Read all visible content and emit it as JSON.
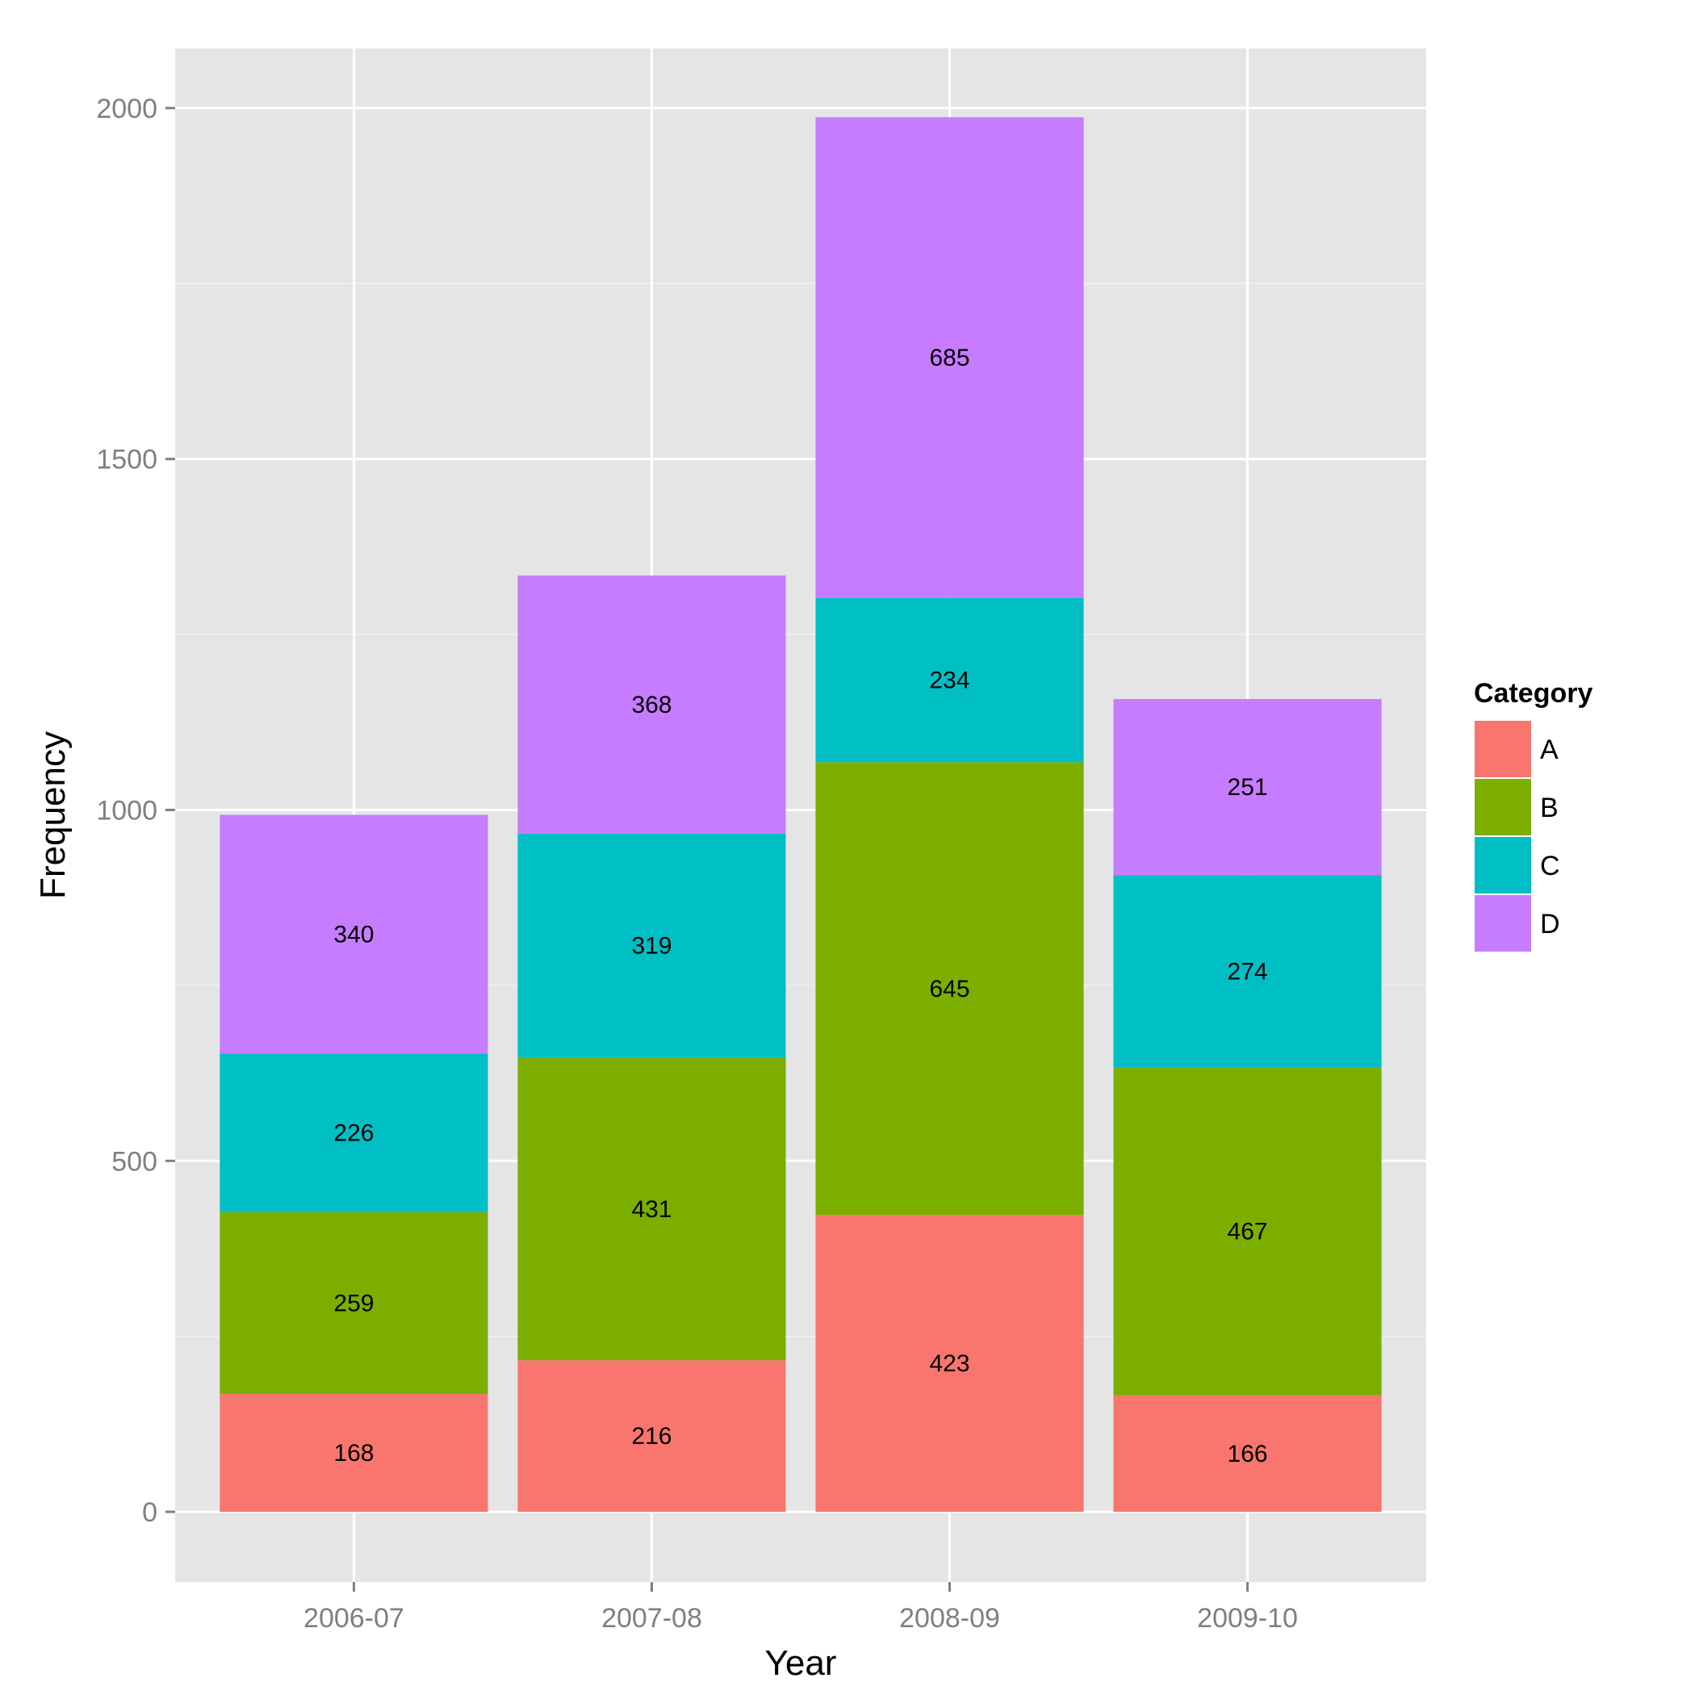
{
  "chart_data": {
    "type": "bar",
    "stacked": true,
    "categories": [
      "2006-07",
      "2007-08",
      "2008-09",
      "2009-10"
    ],
    "series": [
      {
        "name": "A",
        "color": "#F8766D",
        "values": [
          168,
          216,
          423,
          166
        ]
      },
      {
        "name": "B",
        "color": "#7CAE00",
        "values": [
          259,
          431,
          645,
          467
        ]
      },
      {
        "name": "C",
        "color": "#00BFC4",
        "values": [
          226,
          319,
          234,
          274
        ]
      },
      {
        "name": "D",
        "color": "#C77CFF",
        "values": [
          340,
          368,
          685,
          251
        ]
      }
    ],
    "xlabel": "Year",
    "ylabel": "Frequency",
    "ylim": [
      -100,
      2085
    ],
    "yticks": [
      0,
      500,
      1000,
      1500,
      2000
    ],
    "grid": true,
    "legend_title": "Category",
    "legend_position": "right",
    "panel_background": "#E5E5E5",
    "grid_color": "#FFFFFF"
  }
}
